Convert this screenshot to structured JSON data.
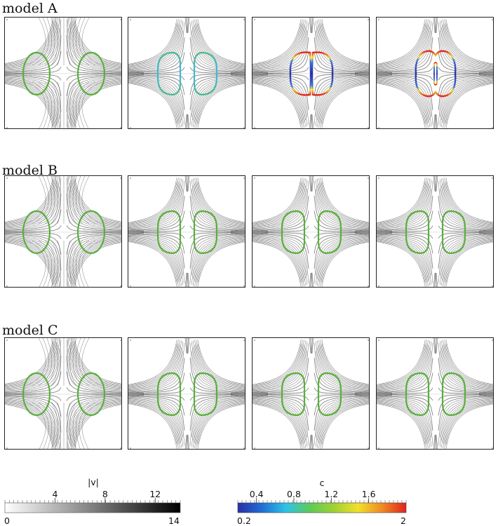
{
  "rows": [
    {
      "id": "A",
      "title": "model A",
      "panels": [
        {
          "style": "sym",
          "drops": "sep",
          "shape": "ellipse",
          "color": "green"
        },
        {
          "style": "h",
          "drops": "close",
          "shape": "rounded",
          "color": "cyan-gradient"
        },
        {
          "style": "h",
          "drops": "touch",
          "shape": "elongated",
          "color": "rainbow"
        },
        {
          "style": "h",
          "drops": "merged",
          "shape": "neck",
          "color": "rainbow"
        }
      ]
    },
    {
      "id": "B",
      "title": "model B",
      "panels": [
        {
          "style": "sym",
          "drops": "sep",
          "shape": "ellipse",
          "color": "green"
        },
        {
          "style": "h",
          "drops": "close",
          "shape": "rounded",
          "color": "green"
        },
        {
          "style": "h",
          "drops": "close",
          "shape": "rounded",
          "color": "green"
        },
        {
          "style": "h",
          "drops": "close",
          "shape": "rounded",
          "color": "green"
        }
      ]
    },
    {
      "id": "C",
      "title": "model C",
      "panels": [
        {
          "style": "sym",
          "drops": "sep",
          "shape": "ellipse",
          "color": "green"
        },
        {
          "style": "h",
          "drops": "close",
          "shape": "rounded",
          "color": "green"
        },
        {
          "style": "h",
          "drops": "close",
          "shape": "rounded",
          "color": "green"
        },
        {
          "style": "h",
          "drops": "close",
          "shape": "rounded",
          "color": "green"
        }
      ]
    }
  ],
  "colorbar_v": {
    "label": "|v|",
    "min_label": "0",
    "max_label": "14",
    "tick_labels": [
      "4",
      "8",
      "12"
    ],
    "tick_values": [
      4,
      8,
      12
    ],
    "range": [
      0,
      14
    ],
    "colors": [
      "#ffffff",
      "#000000"
    ]
  },
  "colorbar_c": {
    "label": "c",
    "min_label": "0.2",
    "max_label": "2",
    "tick_labels": [
      "0.4",
      "0.8",
      "1.2",
      "1.6"
    ],
    "tick_values": [
      0.4,
      0.8,
      1.2,
      1.6
    ],
    "range": [
      0.2,
      2
    ],
    "colors": [
      "#2b2fa6",
      "#1f6fd4",
      "#2fc3e8",
      "#5fca58",
      "#9fd233",
      "#f1e02a",
      "#f08a24",
      "#e0231f"
    ]
  },
  "colors": {
    "interface_green": "#5aae3c",
    "streamline": "#555555",
    "frame": "#222222"
  }
}
